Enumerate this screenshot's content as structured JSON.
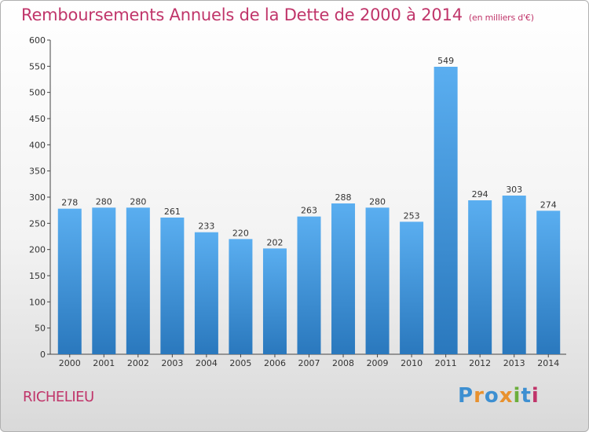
{
  "header": {
    "title": "Remboursements Annuels de la Dette de 2000 à 2014",
    "subtitle": "(en milliers d'€)"
  },
  "footer": {
    "commune": "RICHELIEU",
    "logo_text": "Proxiti",
    "logo_colors": [
      "#3d8fd1",
      "#e8912e",
      "#3d8fd1",
      "#e8912e",
      "#6cae3c",
      "#3d8fd1",
      "#c0356a"
    ]
  },
  "colors": {
    "bar_top": "#5aaef0",
    "bar_bottom": "#2a78bd",
    "title": "#c0356a",
    "axis": "#333333"
  },
  "chart_data": {
    "type": "bar",
    "title": "Remboursements Annuels de la Dette de 2000 à 2014",
    "subtitle": "(en milliers d'€)",
    "xlabel": "",
    "ylabel": "",
    "categories": [
      "2000",
      "2001",
      "2002",
      "2003",
      "2004",
      "2005",
      "2006",
      "2007",
      "2008",
      "2009",
      "2010",
      "2011",
      "2012",
      "2013",
      "2014"
    ],
    "values": [
      278,
      280,
      280,
      261,
      233,
      220,
      202,
      263,
      288,
      280,
      253,
      549,
      294,
      303,
      274
    ],
    "ylim": [
      0,
      600
    ],
    "yticks": [
      0,
      50,
      100,
      150,
      200,
      250,
      300,
      350,
      400,
      450,
      500,
      550,
      600
    ],
    "grid": false,
    "data_labels": true
  }
}
